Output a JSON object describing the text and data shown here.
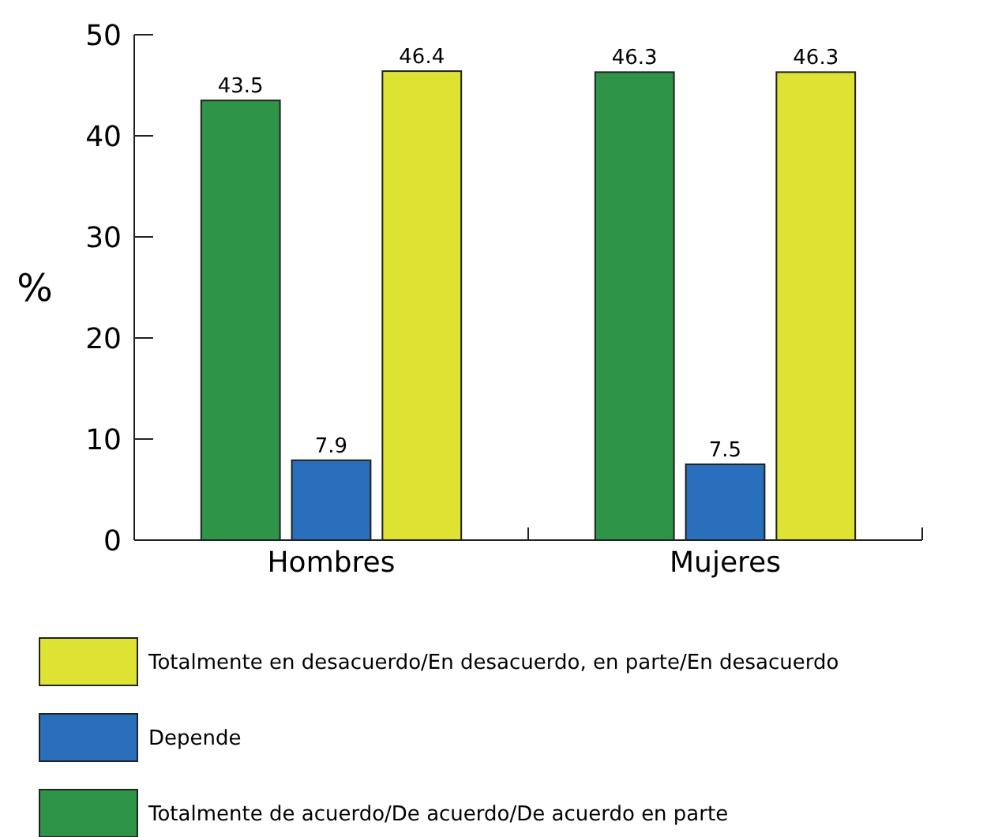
{
  "chart_data": {
    "type": "bar",
    "ylabel": "%",
    "categories": [
      "Hombres",
      "Mujeres"
    ],
    "series": [
      {
        "name": "Totalmente de acuerdo/De acuerdo/De acuerdo en parte",
        "color": "#2e9447",
        "values": [
          43.5,
          46.3
        ]
      },
      {
        "name": "Depende",
        "color": "#2a6fbb",
        "values": [
          7.9,
          7.5
        ]
      },
      {
        "name": "Totalmente en desacuerdo/En desacuerdo, en parte/En desacuerdo",
        "color": "#dde233",
        "values": [
          46.4,
          46.3
        ]
      }
    ],
    "ylim": [
      0,
      50
    ],
    "yticks": [
      0,
      10,
      20,
      30,
      40,
      50
    ],
    "grid": false,
    "legend": "bottom",
    "data_labels": true
  }
}
